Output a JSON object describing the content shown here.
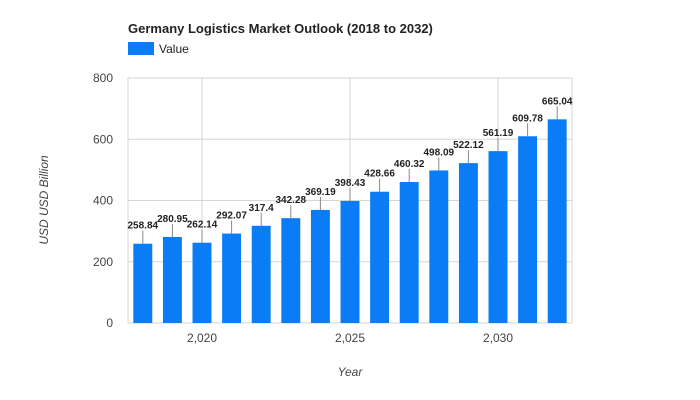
{
  "chart_data": {
    "type": "bar",
    "title": "Germany Logistics Market Outlook (2018 to 2032)",
    "xlabel": "Year",
    "ylabel": "USD USD Billion",
    "legend_position": "top-left",
    "series": [
      {
        "name": "Value",
        "color": "#0a7cf6",
        "x": [
          2018,
          2019,
          2020,
          2021,
          2022,
          2023,
          2024,
          2025,
          2026,
          2027,
          2028,
          2029,
          2030,
          2031,
          2032
        ],
        "values": [
          258.84,
          280.95,
          262.14,
          292.07,
          317.4,
          342.28,
          369.19,
          398.43,
          428.66,
          460.32,
          498.09,
          522.12,
          561.19,
          609.78,
          665.04
        ],
        "labels": [
          "258.84",
          "280.95",
          "262.14",
          "292.07",
          "317.4",
          "342.28",
          "369.19",
          "398.43",
          "428.66",
          "460.32",
          "498.09",
          "522.12",
          "561.19",
          "609.78",
          "665.04"
        ]
      }
    ],
    "ylim": [
      0,
      800
    ],
    "yticks": [
      0,
      200,
      400,
      600,
      800
    ],
    "ytick_labels": [
      "0",
      "200",
      "400",
      "600",
      "800"
    ],
    "xlim": [
      2017.5,
      2032.5
    ],
    "xticks": [
      2020,
      2025,
      2030
    ],
    "xtick_labels": [
      "2,020",
      "2,025",
      "2,030"
    ],
    "grid": true
  }
}
